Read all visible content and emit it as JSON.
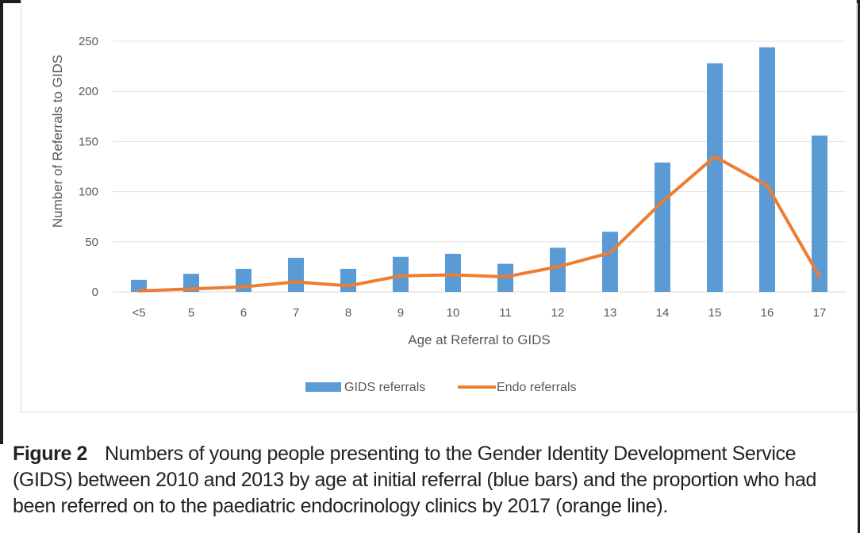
{
  "chart_data": {
    "type": "bar",
    "title": "",
    "xlabel": "Age at Referral to GIDS",
    "ylabel": "Number of Referrals to GIDS",
    "ylim": [
      0,
      250
    ],
    "yticks": [
      0,
      50,
      100,
      150,
      200,
      250
    ],
    "grid": true,
    "legend_position": "bottom",
    "categories": [
      "<5",
      "5",
      "6",
      "7",
      "8",
      "9",
      "10",
      "11",
      "12",
      "13",
      "14",
      "15",
      "16",
      "17"
    ],
    "series": [
      {
        "name": "GIDS referrals",
        "kind": "bar",
        "color": "#5b9bd5",
        "values": [
          12,
          18,
          23,
          34,
          23,
          35,
          38,
          28,
          44,
          60,
          129,
          228,
          244,
          156
        ]
      },
      {
        "name": "Endo referrals",
        "kind": "line",
        "color": "#ed7d31",
        "values": [
          1,
          3,
          5,
          10,
          6,
          16,
          17,
          15,
          25,
          39,
          90,
          135,
          106,
          15
        ]
      }
    ]
  },
  "caption": {
    "label": "Figure 2",
    "text": "Numbers of young people presenting to the Gender Identity Development Service (GIDS) between 2010 and 2013 by age at initial referral (blue bars) and the proportion who had been referred on to the paediatric endocrinology clinics by 2017 (orange line)."
  }
}
